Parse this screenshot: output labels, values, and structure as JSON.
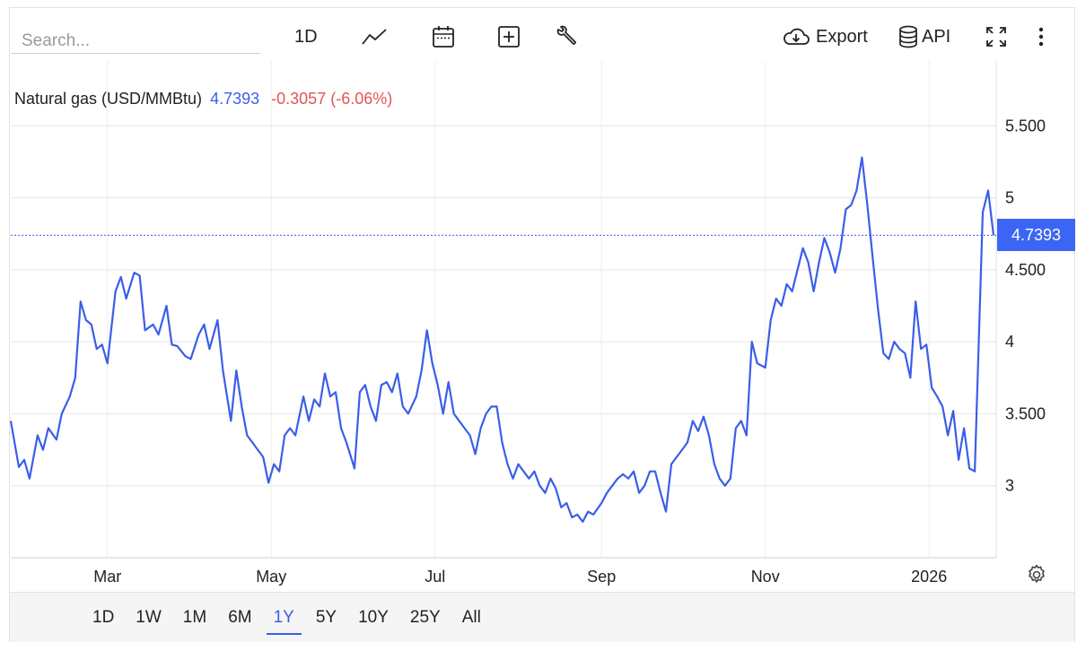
{
  "search": {
    "placeholder": "Search..."
  },
  "toolbar": {
    "interval": "1D",
    "export_label": "Export",
    "api_label": "API"
  },
  "legend": {
    "name": "Natural gas (USD/MMBtu)",
    "last": "4.7393",
    "change": "-0.3057 (-6.06%)"
  },
  "price_tag": "4.7393",
  "ranges": [
    "1D",
    "1W",
    "1M",
    "6M",
    "1Y",
    "5Y",
    "10Y",
    "25Y",
    "All"
  ],
  "active_range": "1Y",
  "colors": {
    "line": "#3b5ee8",
    "accent": "#3b66f5",
    "negative": "#e25555"
  },
  "chart_data": {
    "type": "line",
    "title": "",
    "xlabel": "",
    "ylabel": "",
    "x_tick_labels": [
      "Mar",
      "May",
      "Jul",
      "Sep",
      "Nov",
      "2026"
    ],
    "x_tick_dates": [
      "2025-03-01",
      "2025-05-01",
      "2025-07-01",
      "2025-09-01",
      "2025-11-01",
      "2026-01-01"
    ],
    "y_ticks": [
      3,
      3.5,
      4,
      4.5,
      5,
      5.5
    ],
    "y_tick_labels": [
      "3",
      "3.500",
      "4",
      "4.500",
      "5",
      "5.500"
    ],
    "ylim": [
      2.5,
      5.95
    ],
    "xlim": [
      "2025-01-24",
      "2026-01-26"
    ],
    "grid": true,
    "last_value": 4.7393,
    "series": [
      {
        "name": "Natural gas (USD/MMBtu)",
        "points": [
          [
            "2025-01-24",
            3.45
          ],
          [
            "2025-01-27",
            3.13
          ],
          [
            "2025-01-29",
            3.18
          ],
          [
            "2025-01-31",
            3.05
          ],
          [
            "2025-02-03",
            3.35
          ],
          [
            "2025-02-05",
            3.25
          ],
          [
            "2025-02-07",
            3.4
          ],
          [
            "2025-02-10",
            3.32
          ],
          [
            "2025-02-12",
            3.5
          ],
          [
            "2025-02-15",
            3.62
          ],
          [
            "2025-02-17",
            3.75
          ],
          [
            "2025-02-19",
            4.28
          ],
          [
            "2025-02-21",
            4.15
          ],
          [
            "2025-02-23",
            4.12
          ],
          [
            "2025-02-25",
            3.95
          ],
          [
            "2025-02-27",
            3.98
          ],
          [
            "2025-03-01",
            3.85
          ],
          [
            "2025-03-04",
            4.35
          ],
          [
            "2025-03-06",
            4.45
          ],
          [
            "2025-03-08",
            4.3
          ],
          [
            "2025-03-11",
            4.48
          ],
          [
            "2025-03-13",
            4.46
          ],
          [
            "2025-03-15",
            4.08
          ],
          [
            "2025-03-18",
            4.12
          ],
          [
            "2025-03-20",
            4.05
          ],
          [
            "2025-03-23",
            4.25
          ],
          [
            "2025-03-25",
            3.98
          ],
          [
            "2025-03-27",
            3.97
          ],
          [
            "2025-03-30",
            3.9
          ],
          [
            "2025-04-01",
            3.88
          ],
          [
            "2025-04-04",
            4.05
          ],
          [
            "2025-04-06",
            4.12
          ],
          [
            "2025-04-08",
            3.95
          ],
          [
            "2025-04-11",
            4.15
          ],
          [
            "2025-04-13",
            3.8
          ],
          [
            "2025-04-16",
            3.45
          ],
          [
            "2025-04-18",
            3.8
          ],
          [
            "2025-04-20",
            3.55
          ],
          [
            "2025-04-22",
            3.35
          ],
          [
            "2025-04-24",
            3.3
          ],
          [
            "2025-04-26",
            3.25
          ],
          [
            "2025-04-28",
            3.2
          ],
          [
            "2025-04-30",
            3.02
          ],
          [
            "2025-05-02",
            3.15
          ],
          [
            "2025-05-04",
            3.1
          ],
          [
            "2025-05-06",
            3.35
          ],
          [
            "2025-05-08",
            3.4
          ],
          [
            "2025-05-10",
            3.35
          ],
          [
            "2025-05-13",
            3.62
          ],
          [
            "2025-05-15",
            3.45
          ],
          [
            "2025-05-17",
            3.6
          ],
          [
            "2025-05-19",
            3.55
          ],
          [
            "2025-05-21",
            3.78
          ],
          [
            "2025-05-23",
            3.62
          ],
          [
            "2025-05-25",
            3.65
          ],
          [
            "2025-05-27",
            3.4
          ],
          [
            "2025-05-29",
            3.3
          ],
          [
            "2025-06-01",
            3.12
          ],
          [
            "2025-06-03",
            3.65
          ],
          [
            "2025-06-05",
            3.7
          ],
          [
            "2025-06-07",
            3.55
          ],
          [
            "2025-06-09",
            3.45
          ],
          [
            "2025-06-11",
            3.7
          ],
          [
            "2025-06-13",
            3.72
          ],
          [
            "2025-06-15",
            3.65
          ],
          [
            "2025-06-17",
            3.78
          ],
          [
            "2025-06-19",
            3.55
          ],
          [
            "2025-06-21",
            3.5
          ],
          [
            "2025-06-24",
            3.62
          ],
          [
            "2025-06-26",
            3.8
          ],
          [
            "2025-06-28",
            4.08
          ],
          [
            "2025-06-30",
            3.85
          ],
          [
            "2025-07-02",
            3.7
          ],
          [
            "2025-07-04",
            3.5
          ],
          [
            "2025-07-06",
            3.72
          ],
          [
            "2025-07-08",
            3.5
          ],
          [
            "2025-07-10",
            3.45
          ],
          [
            "2025-07-12",
            3.4
          ],
          [
            "2025-07-14",
            3.35
          ],
          [
            "2025-07-16",
            3.22
          ],
          [
            "2025-07-18",
            3.4
          ],
          [
            "2025-07-20",
            3.5
          ],
          [
            "2025-07-22",
            3.55
          ],
          [
            "2025-07-24",
            3.55
          ],
          [
            "2025-07-26",
            3.3
          ],
          [
            "2025-07-28",
            3.15
          ],
          [
            "2025-07-30",
            3.05
          ],
          [
            "2025-08-01",
            3.15
          ],
          [
            "2025-08-03",
            3.1
          ],
          [
            "2025-08-05",
            3.05
          ],
          [
            "2025-08-07",
            3.1
          ],
          [
            "2025-08-09",
            3.0
          ],
          [
            "2025-08-11",
            2.95
          ],
          [
            "2025-08-13",
            3.05
          ],
          [
            "2025-08-15",
            2.98
          ],
          [
            "2025-08-17",
            2.85
          ],
          [
            "2025-08-19",
            2.88
          ],
          [
            "2025-08-21",
            2.78
          ],
          [
            "2025-08-23",
            2.8
          ],
          [
            "2025-08-25",
            2.75
          ],
          [
            "2025-08-27",
            2.82
          ],
          [
            "2025-08-29",
            2.8
          ],
          [
            "2025-09-01",
            2.88
          ],
          [
            "2025-09-03",
            2.95
          ],
          [
            "2025-09-05",
            3.0
          ],
          [
            "2025-09-07",
            3.05
          ],
          [
            "2025-09-09",
            3.08
          ],
          [
            "2025-09-11",
            3.05
          ],
          [
            "2025-09-13",
            3.1
          ],
          [
            "2025-09-15",
            2.95
          ],
          [
            "2025-09-17",
            3.0
          ],
          [
            "2025-09-19",
            3.1
          ],
          [
            "2025-09-21",
            3.1
          ],
          [
            "2025-09-23",
            2.95
          ],
          [
            "2025-09-25",
            2.82
          ],
          [
            "2025-09-27",
            3.15
          ],
          [
            "2025-09-29",
            3.2
          ],
          [
            "2025-10-01",
            3.25
          ],
          [
            "2025-10-03",
            3.3
          ],
          [
            "2025-10-05",
            3.45
          ],
          [
            "2025-10-07",
            3.38
          ],
          [
            "2025-10-09",
            3.48
          ],
          [
            "2025-10-11",
            3.35
          ],
          [
            "2025-10-13",
            3.15
          ],
          [
            "2025-10-15",
            3.05
          ],
          [
            "2025-10-17",
            3.0
          ],
          [
            "2025-10-19",
            3.05
          ],
          [
            "2025-10-21",
            3.4
          ],
          [
            "2025-10-23",
            3.45
          ],
          [
            "2025-10-25",
            3.35
          ],
          [
            "2025-10-27",
            4.0
          ],
          [
            "2025-10-29",
            3.85
          ],
          [
            "2025-11-01",
            3.82
          ],
          [
            "2025-11-03",
            4.15
          ],
          [
            "2025-11-05",
            4.3
          ],
          [
            "2025-11-07",
            4.25
          ],
          [
            "2025-11-09",
            4.4
          ],
          [
            "2025-11-11",
            4.35
          ],
          [
            "2025-11-13",
            4.5
          ],
          [
            "2025-11-15",
            4.65
          ],
          [
            "2025-11-17",
            4.55
          ],
          [
            "2025-11-19",
            4.35
          ],
          [
            "2025-11-21",
            4.55
          ],
          [
            "2025-11-23",
            4.72
          ],
          [
            "2025-11-25",
            4.62
          ],
          [
            "2025-11-27",
            4.48
          ],
          [
            "2025-11-29",
            4.65
          ],
          [
            "2025-12-01",
            4.92
          ],
          [
            "2025-12-03",
            4.95
          ],
          [
            "2025-12-05",
            5.05
          ],
          [
            "2025-12-07",
            5.28
          ],
          [
            "2025-12-09",
            4.95
          ],
          [
            "2025-12-11",
            4.58
          ],
          [
            "2025-12-13",
            4.22
          ],
          [
            "2025-12-15",
            3.92
          ],
          [
            "2025-12-17",
            3.88
          ],
          [
            "2025-12-19",
            4.0
          ],
          [
            "2025-12-21",
            3.95
          ],
          [
            "2025-12-23",
            3.92
          ],
          [
            "2025-12-25",
            3.75
          ],
          [
            "2025-12-27",
            4.28
          ],
          [
            "2025-12-29",
            3.95
          ],
          [
            "2025-12-31",
            3.98
          ],
          [
            "2026-01-02",
            3.68
          ],
          [
            "2026-01-04",
            3.62
          ],
          [
            "2026-01-06",
            3.55
          ],
          [
            "2026-01-08",
            3.35
          ],
          [
            "2026-01-10",
            3.52
          ],
          [
            "2026-01-12",
            3.18
          ],
          [
            "2026-01-14",
            3.4
          ],
          [
            "2026-01-16",
            3.12
          ],
          [
            "2026-01-18",
            3.1
          ],
          [
            "2026-01-21",
            4.9
          ],
          [
            "2026-01-23",
            5.05
          ],
          [
            "2026-01-25",
            4.74
          ]
        ]
      }
    ]
  }
}
